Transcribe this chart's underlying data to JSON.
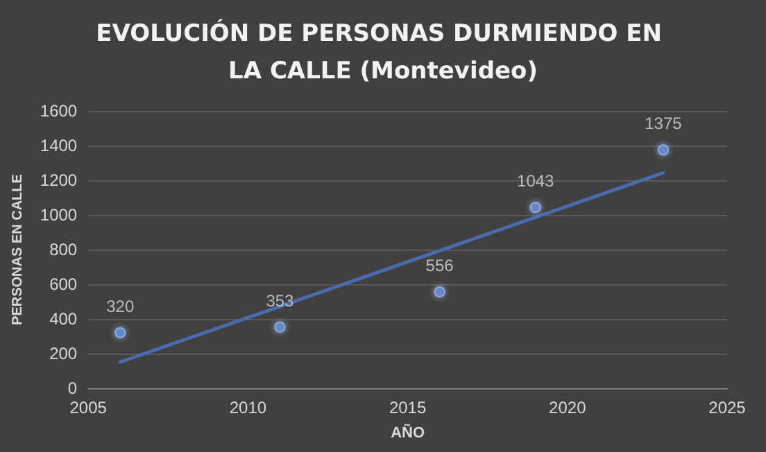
{
  "chart_data": {
    "type": "scatter",
    "title": "EVOLUCIÓN DE PERSONAS DURMIENDO EN LA CALLE (Montevideo)",
    "xlabel": "AÑO",
    "ylabel": "PERSONAS EN CALLE",
    "x": [
      2006,
      2011,
      2016,
      2019,
      2023
    ],
    "series": [
      {
        "color": "#5b86d6",
        "marker": "circle",
        "values": [
          320,
          353,
          556,
          1043,
          1375
        ],
        "value_labels": [
          "320",
          "353",
          "556",
          "1043",
          "1375"
        ]
      },
      {
        "type": "line",
        "color": "#4a6bab",
        "marker": "none",
        "line_style": "solid",
        "x": [
          2006,
          2023
        ],
        "values": [
          151,
          1243
        ]
      }
    ],
    "xlim": [
      2005,
      2025
    ],
    "xticks": [
      2005,
      2010,
      2015,
      2020,
      2025
    ],
    "ylim": [
      0,
      1600
    ],
    "yticks": [
      0,
      200,
      400,
      600,
      800,
      1000,
      1200,
      1400,
      1600
    ],
    "grid": "y"
  }
}
